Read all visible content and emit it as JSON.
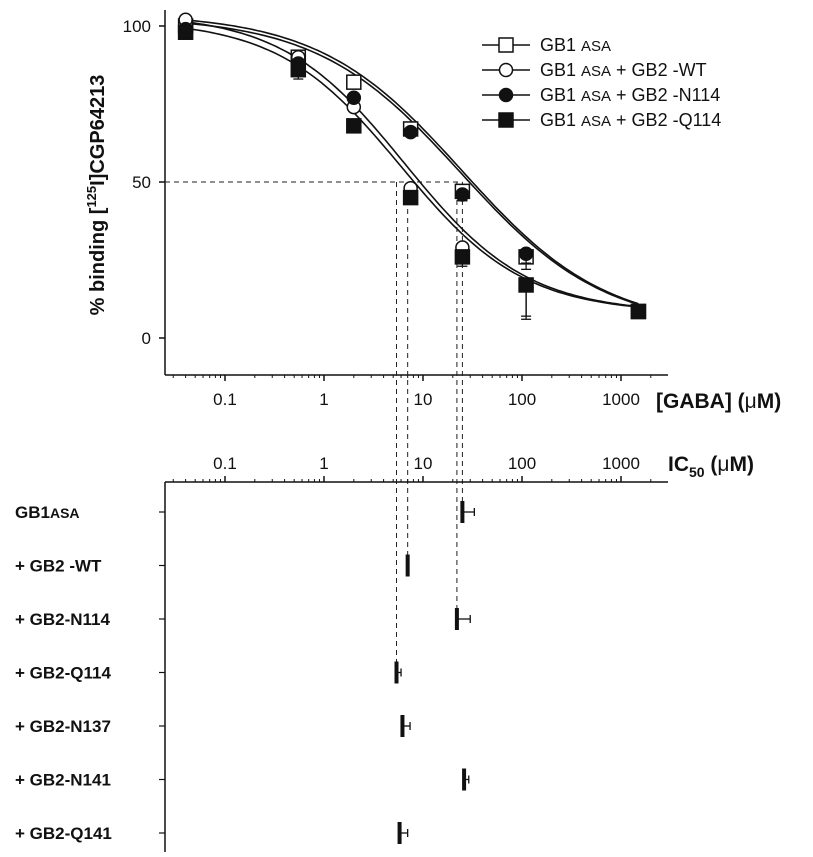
{
  "chart_data": [
    {
      "type": "scatter",
      "ylabel_parts": [
        "% binding [",
        "125",
        "I]CGP64213"
      ],
      "xlabel_parts": [
        "[GABA] (",
        "μ",
        "M)"
      ],
      "x_scale": "log",
      "xlim": [
        0.03,
        3000
      ],
      "ylim": [
        -10,
        105
      ],
      "x_ticks": [
        0.1,
        1,
        10,
        100,
        1000
      ],
      "x_tick_labels": [
        "0.1",
        "1",
        "10",
        "100",
        "1000"
      ],
      "y_ticks": [
        0,
        50,
        100
      ],
      "y_tick_labels": [
        "0",
        "50",
        "100"
      ],
      "legend_position": "top-right",
      "reference_line": {
        "y": 50
      },
      "series": [
        {
          "name": "GB1 ASA",
          "label_parts": [
            "GB1 ",
            "ASA"
          ],
          "marker": "open-square",
          "x": [
            0.04,
            0.55,
            2,
            7.5,
            25,
            110,
            1500
          ],
          "y": [
            100,
            90,
            82,
            67,
            47,
            26,
            8.5
          ],
          "err": [
            0,
            0,
            0,
            0,
            3,
            4,
            0
          ],
          "fit_ic50": 25,
          "fit_top": 104,
          "fit_bottom": 3,
          "fit_hill": 0.6
        },
        {
          "name": "GB1 ASA + GB2 -WT",
          "label_parts": [
            "GB1 ",
            "ASA",
            " + GB2 -WT"
          ],
          "marker": "open-circle",
          "x": [
            0.04,
            0.55,
            2,
            7.5,
            25,
            110,
            1500
          ],
          "y": [
            102,
            90,
            74,
            48,
            29,
            17,
            8.5
          ],
          "err": [
            0,
            0,
            0,
            0,
            2,
            10,
            0
          ],
          "fit_ic50": 6.5,
          "fit_top": 104,
          "fit_bottom": 8,
          "fit_hill": 0.7
        },
        {
          "name": "GB1 ASA + GB2 -N114",
          "label_parts": [
            "GB1 ",
            "ASA",
            " + GB2 -N114"
          ],
          "marker": "filled-circle",
          "x": [
            0.04,
            0.55,
            2,
            7.5,
            25,
            110,
            1500
          ],
          "y": [
            99,
            88,
            77,
            66,
            46,
            27,
            8.5
          ],
          "err": [
            0,
            0,
            0,
            0,
            2,
            3,
            0
          ],
          "fit_ic50": 24,
          "fit_top": 103,
          "fit_bottom": 3,
          "fit_hill": 0.6
        },
        {
          "name": "GB1 ASA + GB2 -Q114",
          "label_parts": [
            "GB1 ",
            "ASA",
            " + GB2 -Q114"
          ],
          "marker": "filled-square",
          "x": [
            0.04,
            0.55,
            2,
            7.5,
            25,
            110,
            1500
          ],
          "y": [
            98,
            86,
            68,
            45,
            26,
            17,
            8.5
          ],
          "err": [
            0,
            3,
            0,
            0,
            3,
            11,
            0
          ],
          "fit_ic50": 6,
          "fit_top": 102,
          "fit_bottom": 8,
          "fit_hill": 0.7
        }
      ]
    },
    {
      "type": "bar",
      "orientation": "horizontal",
      "xlabel_parts": [
        "IC",
        "50",
        " (",
        "μ",
        "M)"
      ],
      "x_scale": "log",
      "x_ticks": [
        0.1,
        1,
        10,
        100,
        1000
      ],
      "x_tick_labels": [
        "0.1",
        "1",
        "10",
        "100",
        "1000"
      ],
      "rows": [
        {
          "label_parts": [
            "GB1",
            "ASA"
          ],
          "value": 25,
          "err": 8
        },
        {
          "label_parts": [
            "+ GB2 -WT",
            ""
          ],
          "value": 7,
          "err": 0
        },
        {
          "label_parts": [
            "+ GB2-N114",
            ""
          ],
          "value": 22,
          "err": 8
        },
        {
          "label_parts": [
            "+ GB2-Q114",
            ""
          ],
          "value": 5.4,
          "err": 0.6
        },
        {
          "label_parts": [
            "+ GB2-N137",
            ""
          ],
          "value": 6.2,
          "err": 1.2
        },
        {
          "label_parts": [
            "+ GB2-N141",
            ""
          ],
          "value": 26,
          "err": 3
        },
        {
          "label_parts": [
            "+ GB2-Q141",
            ""
          ],
          "value": 5.8,
          "err": 1.2
        }
      ],
      "guide_values": [
        25,
        22,
        7,
        5.4
      ]
    }
  ]
}
